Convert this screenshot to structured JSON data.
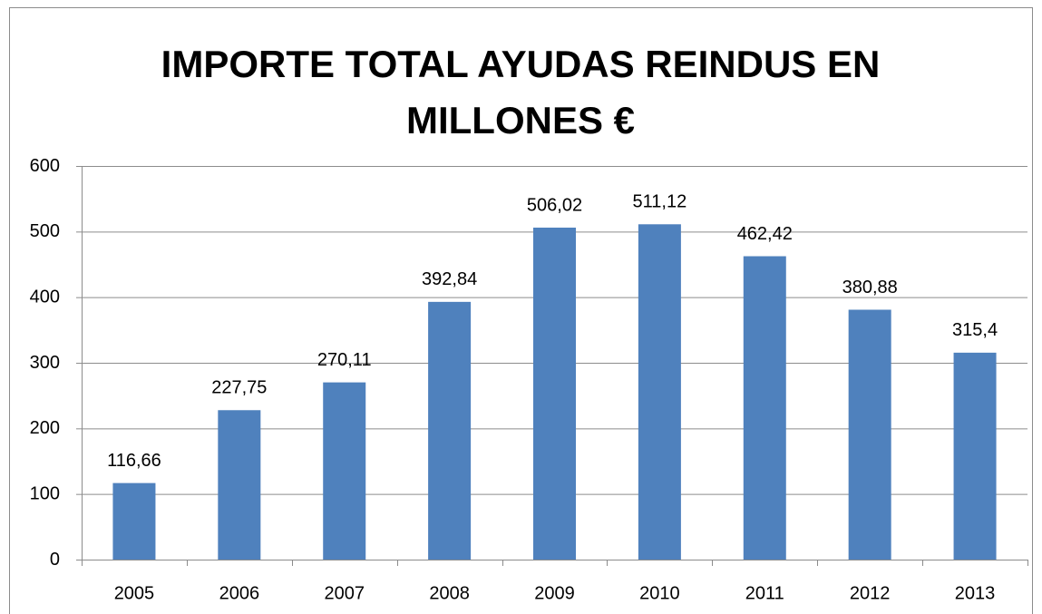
{
  "chart_data": {
    "type": "bar",
    "title": "IMPORTE TOTAL AYUDAS REINDUS EN MILLONES €",
    "categories": [
      "2005",
      "2006",
      "2007",
      "2008",
      "2009",
      "2010",
      "2011",
      "2012",
      "2013"
    ],
    "values": [
      116.66,
      227.75,
      270.11,
      392.84,
      506.02,
      511.12,
      462.42,
      380.88,
      315.4
    ],
    "value_labels": [
      "116,66",
      "227,75",
      "270,11",
      "392,84",
      "506,02",
      "511,12",
      "462,42",
      "380,88",
      "315,4"
    ],
    "color": "#4f81bd",
    "ylim": [
      0,
      600
    ],
    "yticks": [
      0,
      100,
      200,
      300,
      400,
      500,
      600
    ],
    "grid": true
  }
}
